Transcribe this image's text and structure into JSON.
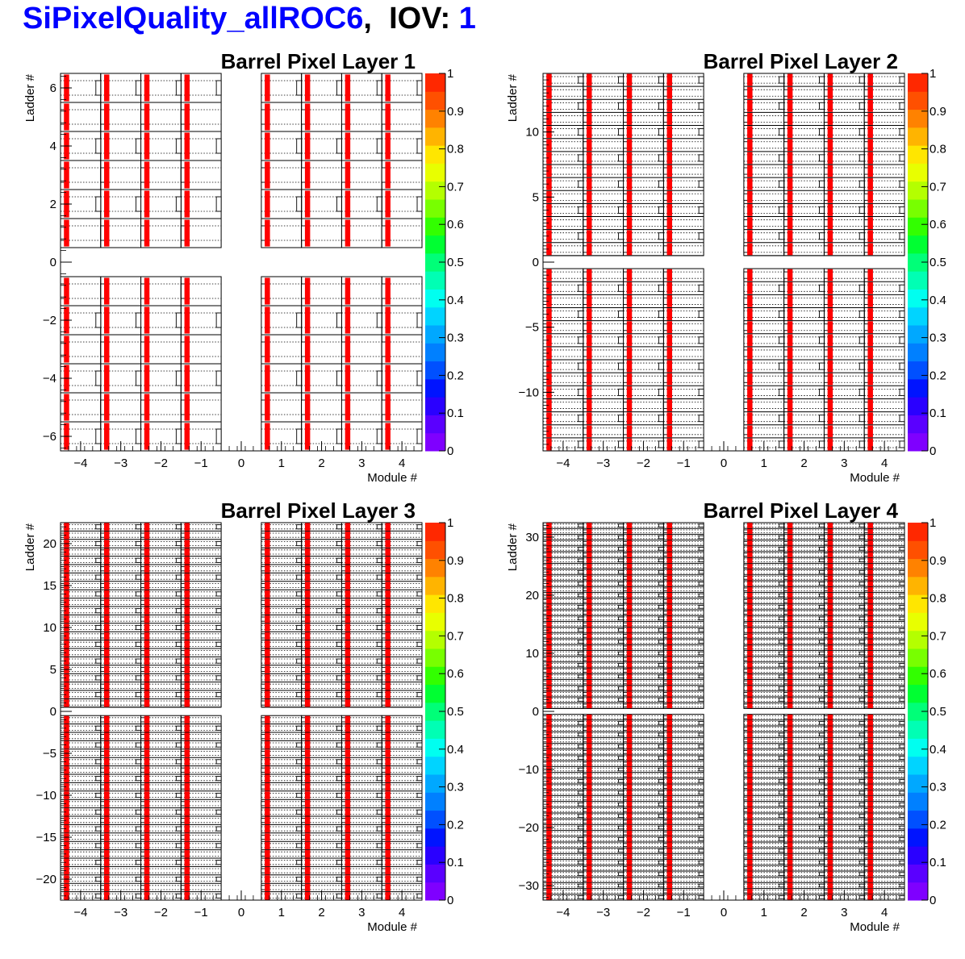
{
  "header": {
    "title_prefix": "SiPixelQuality_allROC6",
    "sep": ",",
    "iov_label": "IOV:",
    "iov_value": "1"
  },
  "colors": {
    "header_blue": "#0000ff",
    "marker": "#ff0000",
    "palette": [
      "#7f00ff",
      "#5a00ff",
      "#2a00ff",
      "#0014ff",
      "#0050ff",
      "#0080ff",
      "#00a8ff",
      "#00d4ff",
      "#00fff0",
      "#00ffb4",
      "#00ff78",
      "#00ff32",
      "#32ff00",
      "#78ff00",
      "#b4ff00",
      "#e8ff00",
      "#ffe600",
      "#ffb400",
      "#ff8200",
      "#ff5000",
      "#ff2800"
    ]
  },
  "chart_data": [
    {
      "type": "heatmap",
      "title": "Barrel Pixel Layer 1",
      "xlabel": "Module #",
      "ylabel": "Ladder #",
      "xlim": [
        -4.5,
        4.5
      ],
      "ylim": [
        -6.5,
        6.5
      ],
      "xticks": [
        -4,
        -3,
        -2,
        -1,
        0,
        1,
        2,
        3,
        4
      ],
      "yticks": [
        -6,
        -4,
        -2,
        0,
        2,
        4,
        6
      ],
      "zlim": [
        0,
        1
      ],
      "zticks": [
        0,
        0.1,
        0.2,
        0.3,
        0.4,
        0.5,
        0.6,
        0.7,
        0.8,
        0.9,
        1
      ],
      "ladders": 6,
      "modules": 4,
      "masked_value": 1,
      "masked_roc": "ROC 6 of every module"
    },
    {
      "type": "heatmap",
      "title": "Barrel Pixel Layer 2",
      "xlabel": "Module #",
      "ylabel": "Ladder #",
      "xlim": [
        -4.5,
        4.5
      ],
      "ylim": [
        -14.5,
        14.5
      ],
      "xticks": [
        -4,
        -3,
        -2,
        -1,
        0,
        1,
        2,
        3,
        4
      ],
      "yticks": [
        -10,
        -5,
        0,
        5,
        10
      ],
      "zlim": [
        0,
        1
      ],
      "zticks": [
        0,
        0.1,
        0.2,
        0.3,
        0.4,
        0.5,
        0.6,
        0.7,
        0.8,
        0.9,
        1
      ],
      "ladders": 14,
      "modules": 4,
      "masked_value": 1,
      "masked_roc": "ROC 6 of every module"
    },
    {
      "type": "heatmap",
      "title": "Barrel Pixel Layer 3",
      "xlabel": "Module #",
      "ylabel": "Ladder #",
      "xlim": [
        -4.5,
        4.5
      ],
      "ylim": [
        -22.5,
        22.5
      ],
      "xticks": [
        -4,
        -3,
        -2,
        -1,
        0,
        1,
        2,
        3,
        4
      ],
      "yticks": [
        -20,
        -15,
        -10,
        -5,
        0,
        5,
        10,
        15,
        20
      ],
      "zlim": [
        0,
        1
      ],
      "zticks": [
        0,
        0.1,
        0.2,
        0.3,
        0.4,
        0.5,
        0.6,
        0.7,
        0.8,
        0.9,
        1
      ],
      "ladders": 22,
      "modules": 4,
      "masked_value": 1,
      "masked_roc": "ROC 6 of every module"
    },
    {
      "type": "heatmap",
      "title": "Barrel Pixel Layer 4",
      "xlabel": "Module #",
      "ylabel": "Ladder #",
      "xlim": [
        -4.5,
        4.5
      ],
      "ylim": [
        -32.5,
        32.5
      ],
      "xticks": [
        -4,
        -3,
        -2,
        -1,
        0,
        1,
        2,
        3,
        4
      ],
      "yticks": [
        -30,
        -20,
        -10,
        0,
        10,
        20,
        30
      ],
      "zlim": [
        0,
        1
      ],
      "zticks": [
        0,
        0.1,
        0.2,
        0.3,
        0.4,
        0.5,
        0.6,
        0.7,
        0.8,
        0.9,
        1
      ],
      "ladders": 32,
      "modules": 4,
      "masked_value": 1,
      "masked_roc": "ROC 6 of every module"
    }
  ]
}
